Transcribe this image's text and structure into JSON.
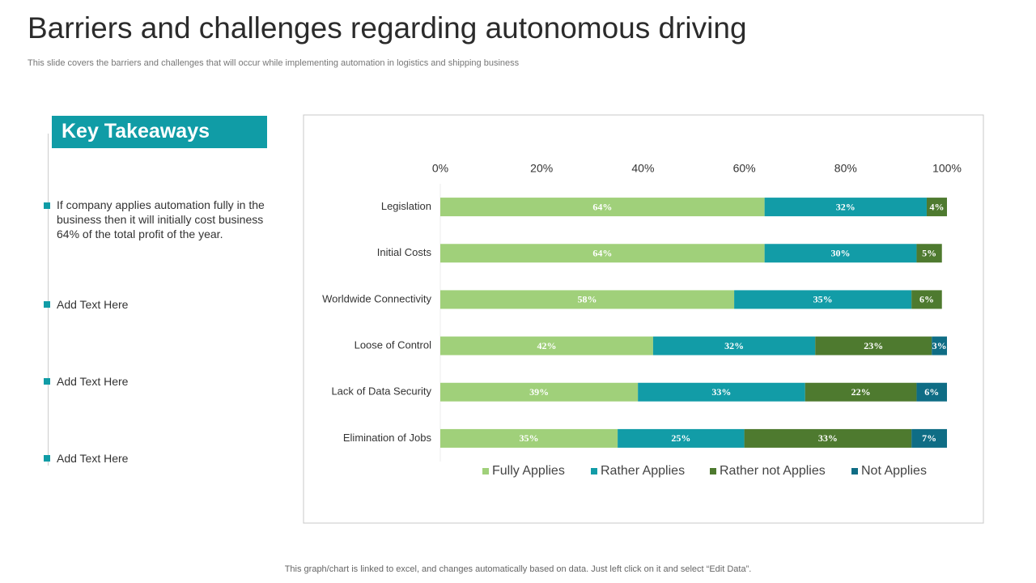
{
  "header": {
    "title": "Barriers and challenges regarding autonomous driving",
    "subtitle": "This slide covers the barriers and challenges that will occur while implementing automation in logistics and shipping business"
  },
  "takeaways": {
    "heading": "Key Takeaways",
    "items": [
      "If company applies automation fully in the business then it will initially cost business 64% of the total profit of the year.",
      "Add Text Here",
      "Add Text Here",
      "Add Text Here"
    ]
  },
  "footer": "This graph/chart is linked to excel, and changes automatically based on data. Just left click on it and select “Edit Data”.",
  "chart_data": {
    "type": "stacked-bar-horizontal",
    "categories": [
      "Legislation",
      "Initial Costs",
      "Worldwide Connectivity",
      "Loose of Control",
      "Lack of Data Security",
      "Elimination of Jobs"
    ],
    "series": [
      {
        "name": "Fully Applies",
        "color": "#a0d07a",
        "values": [
          64,
          64,
          58,
          42,
          39,
          35
        ],
        "value_labels": [
          "64%",
          "64%",
          "58%",
          "42%",
          "39%",
          "35%"
        ]
      },
      {
        "name": "Rather Applies",
        "color": "#129ca7",
        "values": [
          32,
          30,
          35,
          32,
          33,
          25
        ],
        "value_labels": [
          "32%",
          "30%",
          "35%",
          "32%",
          "33%",
          "25%"
        ]
      },
      {
        "name": "Rather not Applies",
        "color": "#4e7a2f",
        "values": [
          4,
          5,
          6,
          23,
          22,
          33
        ],
        "value_labels": [
          "4%",
          "5%",
          "6%",
          "23%",
          "22%",
          "33%"
        ]
      },
      {
        "name": "Not Applies",
        "color": "#0f6d85",
        "values": [
          null,
          null,
          null,
          3,
          6,
          7
        ],
        "value_labels": [
          null,
          null,
          null,
          "3%",
          "6%",
          "7%"
        ]
      }
    ],
    "xlim": [
      0,
      100
    ],
    "xticks": [
      {
        "value": 0,
        "label": "0%"
      },
      {
        "value": 20,
        "label": "20%"
      },
      {
        "value": 40,
        "label": "40%"
      },
      {
        "value": 60,
        "label": "60%"
      },
      {
        "value": 80,
        "label": "80%"
      },
      {
        "value": 100,
        "label": "100%"
      }
    ],
    "legend": "bottom"
  }
}
